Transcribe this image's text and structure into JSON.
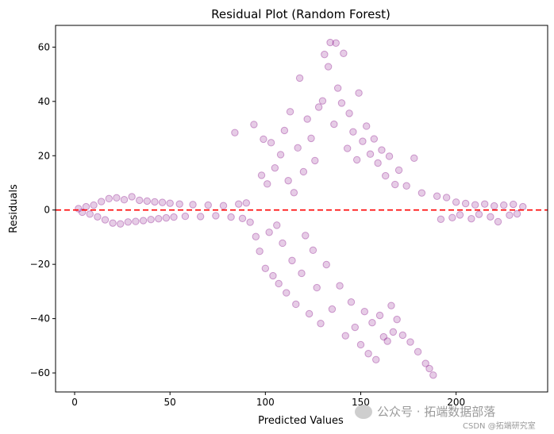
{
  "chart_data": {
    "type": "scatter",
    "title": "Residual Plot (Random Forest)",
    "xlabel": "Predicted Values",
    "ylabel": "Residuals",
    "xlim": [
      -10,
      248
    ],
    "ylim": [
      -67,
      68
    ],
    "xticks": [
      0,
      50,
      100,
      150,
      200
    ],
    "yticks": [
      -60,
      -40,
      -20,
      0,
      20,
      40,
      60
    ],
    "grid": false,
    "point_color": "#800080",
    "point_alpha": 0.2,
    "reference_line": {
      "y": 0,
      "color": "#ff0000",
      "style": "dashed"
    },
    "series": [
      {
        "points": [
          [
            2,
            0.5
          ],
          [
            4,
            -0.8
          ],
          [
            6,
            1.2
          ],
          [
            8,
            -1.5
          ],
          [
            10,
            1.8
          ],
          [
            12,
            -2.5
          ],
          [
            14,
            3.1
          ],
          [
            16,
            -3.6
          ],
          [
            18,
            4.2
          ],
          [
            20,
            -4.8
          ],
          [
            22,
            4.5
          ],
          [
            24,
            -5.1
          ],
          [
            26,
            3.8
          ],
          [
            28,
            -4.4
          ],
          [
            30,
            4.9
          ],
          [
            32,
            -4.2
          ],
          [
            34,
            3.6
          ],
          [
            36,
            -3.9
          ],
          [
            38,
            3.3
          ],
          [
            40,
            -3.5
          ],
          [
            42,
            3.0
          ],
          [
            44,
            -3.2
          ],
          [
            46,
            2.8
          ],
          [
            48,
            -2.9
          ],
          [
            50,
            2.5
          ],
          [
            52,
            -2.6
          ],
          [
            55,
            2.2
          ],
          [
            58,
            -2.3
          ],
          [
            62,
            2.0
          ],
          [
            66,
            -2.4
          ],
          [
            70,
            1.8
          ],
          [
            74,
            -2.1
          ],
          [
            78,
            1.6
          ],
          [
            82,
            -2.6
          ],
          [
            84,
            28.5
          ],
          [
            86,
            2.2
          ],
          [
            88,
            -3.1
          ],
          [
            90,
            2.6
          ],
          [
            92,
            -4.5
          ],
          [
            94,
            31.5
          ],
          [
            95,
            -9.8
          ],
          [
            97,
            -15.2
          ],
          [
            98,
            12.8
          ],
          [
            99,
            26.1
          ],
          [
            100,
            -21.5
          ],
          [
            101,
            9.6
          ],
          [
            102,
            -8.2
          ],
          [
            103,
            24.8
          ],
          [
            104,
            -24.2
          ],
          [
            105,
            15.5
          ],
          [
            106,
            -5.6
          ],
          [
            107,
            -27.1
          ],
          [
            108,
            20.4
          ],
          [
            109,
            -12.2
          ],
          [
            110,
            29.3
          ],
          [
            111,
            -30.5
          ],
          [
            112,
            10.8
          ],
          [
            113,
            36.2
          ],
          [
            114,
            -18.6
          ],
          [
            115,
            6.4
          ],
          [
            116,
            -34.7
          ],
          [
            117,
            22.9
          ],
          [
            118,
            48.6
          ],
          [
            119,
            -23.3
          ],
          [
            120,
            14.1
          ],
          [
            121,
            -9.4
          ],
          [
            122,
            33.5
          ],
          [
            123,
            -38.2
          ],
          [
            124,
            26.4
          ],
          [
            125,
            -14.8
          ],
          [
            126,
            18.2
          ],
          [
            127,
            -28.6
          ],
          [
            128,
            37.9
          ],
          [
            129,
            -41.8
          ],
          [
            130,
            40.2
          ],
          [
            131,
            57.3
          ],
          [
            132,
            -20.1
          ],
          [
            133,
            52.8
          ],
          [
            134,
            61.7
          ],
          [
            135,
            -36.5
          ],
          [
            136,
            31.6
          ],
          [
            137,
            61.5
          ],
          [
            138,
            44.9
          ],
          [
            139,
            -27.9
          ],
          [
            140,
            39.4
          ],
          [
            141,
            57.7
          ],
          [
            142,
            -46.3
          ],
          [
            143,
            22.7
          ],
          [
            144,
            35.6
          ],
          [
            145,
            -33.9
          ],
          [
            146,
            28.8
          ],
          [
            147,
            -43.2
          ],
          [
            148,
            18.5
          ],
          [
            149,
            43.1
          ],
          [
            150,
            -49.6
          ],
          [
            151,
            25.3
          ],
          [
            152,
            -37.4
          ],
          [
            153,
            30.9
          ],
          [
            154,
            -52.9
          ],
          [
            155,
            20.6
          ],
          [
            156,
            -41.5
          ],
          [
            157,
            26.2
          ],
          [
            158,
            -55.1
          ],
          [
            159,
            17.3
          ],
          [
            160,
            -38.8
          ],
          [
            161,
            22.1
          ],
          [
            162,
            -46.7
          ],
          [
            163,
            12.6
          ],
          [
            164,
            -48.3
          ],
          [
            165,
            19.8
          ],
          [
            166,
            -35.2
          ],
          [
            167,
            -44.9
          ],
          [
            168,
            9.4
          ],
          [
            169,
            -40.3
          ],
          [
            170,
            14.7
          ],
          [
            172,
            -46.1
          ],
          [
            174,
            8.9
          ],
          [
            176,
            -48.6
          ],
          [
            178,
            19.1
          ],
          [
            180,
            -52.2
          ],
          [
            182,
            6.3
          ],
          [
            184,
            -56.5
          ],
          [
            186,
            -58.4
          ],
          [
            188,
            -60.8
          ],
          [
            190,
            5.1
          ],
          [
            192,
            -3.4
          ],
          [
            195,
            4.6
          ],
          [
            198,
            -2.8
          ],
          [
            200,
            2.9
          ],
          [
            202,
            -1.8
          ],
          [
            205,
            2.4
          ],
          [
            208,
            -3.2
          ],
          [
            210,
            1.9
          ],
          [
            212,
            -1.6
          ],
          [
            215,
            2.2
          ],
          [
            218,
            -2.5
          ],
          [
            220,
            1.5
          ],
          [
            222,
            -4.3
          ],
          [
            225,
            1.8
          ],
          [
            228,
            -1.9
          ],
          [
            230,
            2.1
          ],
          [
            232,
            -1.4
          ],
          [
            235,
            1.2
          ]
        ]
      }
    ]
  },
  "watermark": {
    "text": "公众号 · 拓端数据部落",
    "credit": "CSDN @拓端研究室"
  }
}
